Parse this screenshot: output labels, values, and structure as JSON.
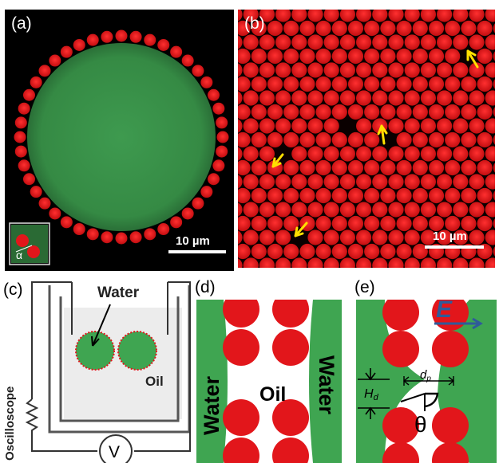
{
  "panels": {
    "a": {
      "label": "(a)",
      "scale": "10 µm",
      "inset_symbol": "α"
    },
    "b": {
      "label": "(b)",
      "scale": "10 µm"
    },
    "c": {
      "label": "(c)",
      "water": "Water",
      "oil": "Oil",
      "oscilloscope": "Oscilloscope",
      "voltage": "V"
    },
    "d": {
      "label": "(d)",
      "water_left": "Water",
      "oil": "Oil",
      "water_right": "Water"
    },
    "e": {
      "label": "(e)",
      "field": "E",
      "hd": "H",
      "hd_sub": "d",
      "dp": "d",
      "dp_sub": "p",
      "theta": "θ"
    }
  },
  "colors": {
    "droplet_green": "#3c9a4c",
    "particle_red": "#e2161b",
    "fluid_green": "#3fa551",
    "field_arrow": "#2f5b9a"
  }
}
